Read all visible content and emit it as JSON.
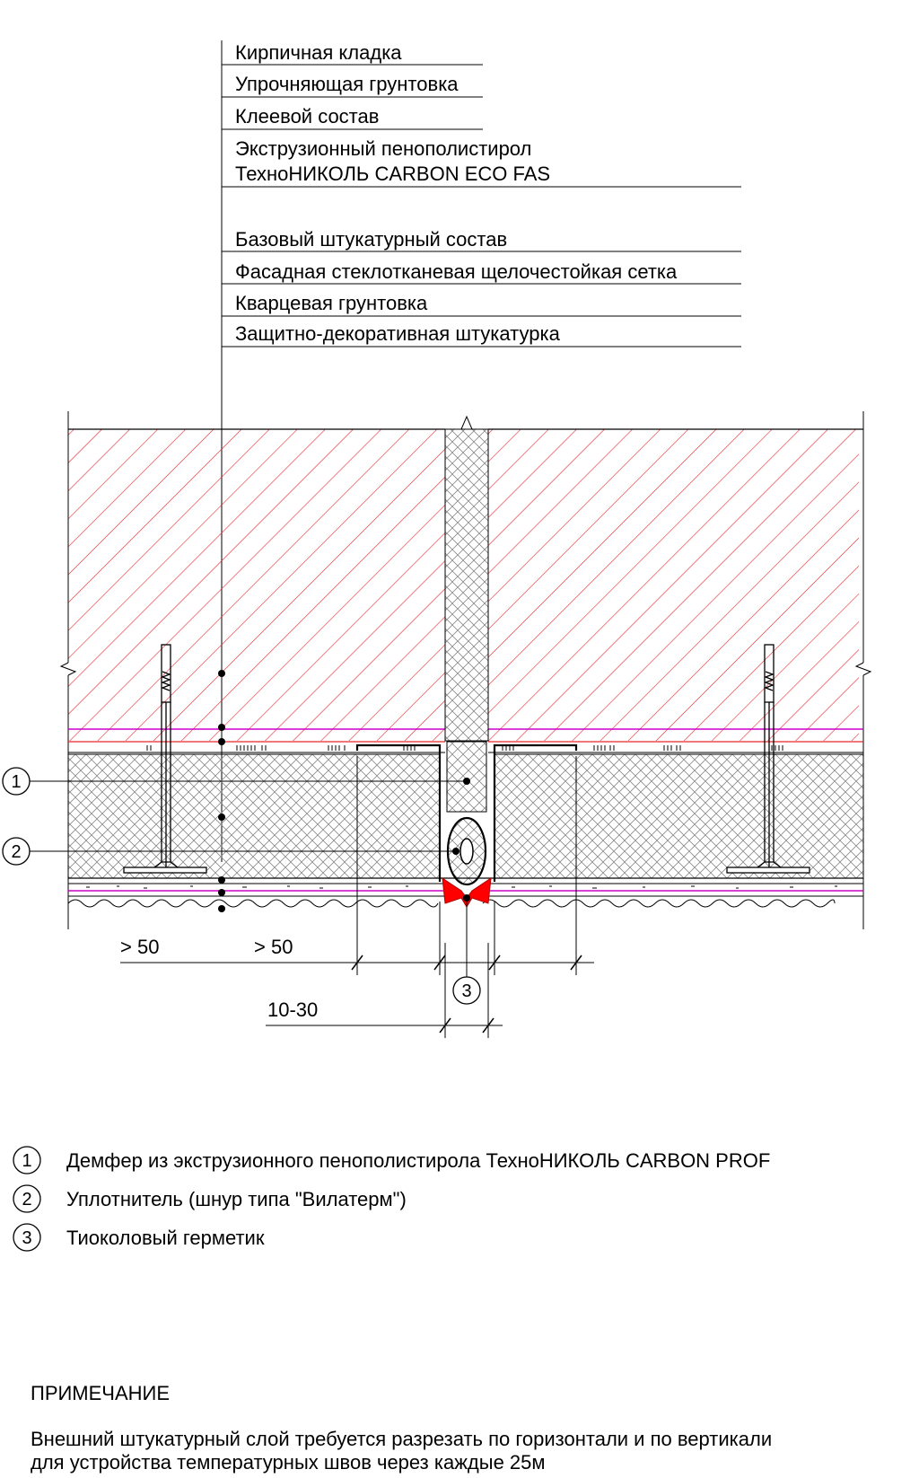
{
  "layers": [
    {
      "lines": [
        "Кирпичная кладка"
      ]
    },
    {
      "lines": [
        "Упрочняющая грунтовка"
      ]
    },
    {
      "lines": [
        "Клеевой состав"
      ]
    },
    {
      "lines": [
        "Экструзионный пенополистирол",
        "ТехноНИКОЛЬ CARBON ECO FAS"
      ]
    },
    {
      "lines": [
        "Базовый штукатурный состав"
      ]
    },
    {
      "lines": [
        "Фасадная стеклотканевая щелочестойкая сетка"
      ]
    },
    {
      "lines": [
        "Кварцевая грунтовка"
      ]
    },
    {
      "lines": [
        "Защитно-декоративная штукатурка"
      ]
    }
  ],
  "dimensions": {
    "left_a": "> 50",
    "left_b": "> 50",
    "gap": "10-30"
  },
  "callouts": [
    "1",
    "2",
    "3"
  ],
  "legend": [
    {
      "num": "1",
      "text": "Демфер из экструзионного пенополистирола ТехноНИКОЛЬ  CARBON PROF"
    },
    {
      "num": "2",
      "text": "Уплотнитель (шнур типа \"Вилатерм\")"
    },
    {
      "num": "3",
      "text": "Тиоколовый герметик"
    }
  ],
  "note": {
    "title": "ПРИМЕЧАНИЕ",
    "lines": [
      "Внешний штукатурный слой требуется разрезать по горизонтали и по вертикали",
      "для устройства  температурных швов через каждые 25м"
    ]
  },
  "colors": {
    "brick_hatch": "#e8262b",
    "mesh_line": "#cc00cc",
    "sealant": "#ff0000",
    "insulation_hatch": "#8a8a8a"
  }
}
